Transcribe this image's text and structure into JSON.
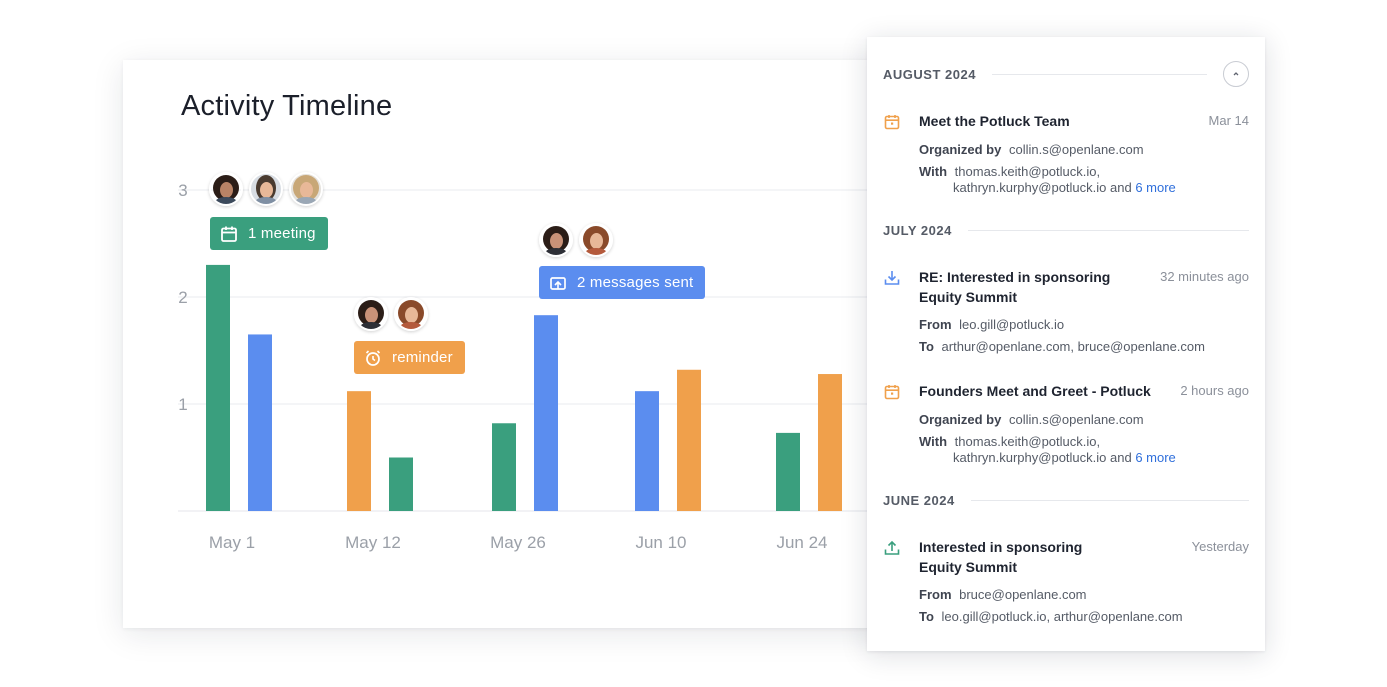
{
  "chart": {
    "title": "Activity Timeline",
    "colors": {
      "green": "#3a9f7e",
      "blue": "#5b8def",
      "orange": "#f0a04b",
      "grid": "#e9ebef",
      "tick": "#9ba0a8"
    },
    "badges": {
      "meeting": {
        "label": "1 meeting",
        "icon": "calendar-icon"
      },
      "reminder": {
        "label": "reminder",
        "icon": "alarm-clock-icon"
      },
      "messages": {
        "label": "2 messages sent",
        "icon": "message-icon"
      }
    }
  },
  "chart_data": {
    "type": "bar",
    "title": "Activity Timeline",
    "ylim": [
      0,
      3
    ],
    "yticks": [
      "1",
      "2",
      "3"
    ],
    "categories": [
      "May 1",
      "May 12",
      "May 26",
      "Jun 10",
      "Jun 24"
    ],
    "grid": true,
    "bars": [
      {
        "category": "May 1",
        "color": "green",
        "value": 2.3
      },
      {
        "category": "May 1",
        "color": "blue",
        "value": 1.65
      },
      {
        "category": "May 12",
        "color": "orange",
        "value": 1.12
      },
      {
        "category": "May 12",
        "color": "green",
        "value": 0.5
      },
      {
        "category": "May 26",
        "color": "green",
        "value": 0.82
      },
      {
        "category": "May 26",
        "color": "blue",
        "value": 1.83
      },
      {
        "category": "Jun 10",
        "color": "blue",
        "value": 1.12
      },
      {
        "category": "Jun 10",
        "color": "orange",
        "value": 1.32
      },
      {
        "category": "Jun 24",
        "color": "green",
        "value": 0.73
      },
      {
        "category": "Jun 24",
        "color": "orange",
        "value": 1.28
      }
    ]
  },
  "feed": {
    "collapse_icon": "chevron-up-icon",
    "months": [
      {
        "label": "AUGUST 2024",
        "items": [
          {
            "icon": "calendar-icon",
            "title": "Meet the Potluck Team",
            "time": "Mar 14",
            "organized_by_key": "Organized by",
            "organized_by": "collin.s@openlane.com",
            "with_key": "With",
            "with_line1": "thomas.keith@potluck.io,",
            "with_line2": "kathryn.kurphy@potluck.io and",
            "with_more": "6 more"
          }
        ]
      },
      {
        "label": "JULY 2024",
        "items": [
          {
            "icon": "inbox-download-icon",
            "title": "RE: Interested in sponsoring Equity Summit",
            "time": "32 minutes ago",
            "from_key": "From",
            "from": "leo.gill@potluck.io",
            "to_key": "To",
            "to": "arthur@openlane.com, bruce@openlane.com"
          },
          {
            "icon": "calendar-icon",
            "title": "Founders Meet and Greet - Potluck",
            "time": "2 hours ago",
            "organized_by_key": "Organized by",
            "organized_by": "collin.s@openlane.com",
            "with_key": "With",
            "with_line1": "thomas.keith@potluck.io,",
            "with_line2": "kathryn.kurphy@potluck.io and",
            "with_more": "6 more"
          }
        ]
      },
      {
        "label": "JUNE 2024",
        "items": [
          {
            "icon": "outbox-upload-icon",
            "title": "Interested in sponsoring Equity Summit",
            "time": "Yesterday",
            "from_key": "From",
            "from": "bruce@openlane.com",
            "to_key": "To",
            "to": "leo.gill@potluck.io, arthur@openlane.com"
          }
        ]
      }
    ]
  }
}
